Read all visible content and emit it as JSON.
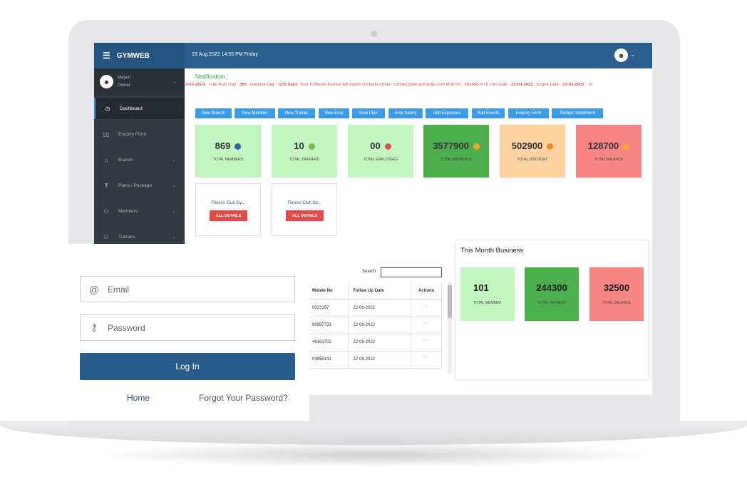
{
  "header": {
    "brand": "GYMWEB",
    "datetime": "19.Aug.2022 14:55 PM Friday"
  },
  "user": {
    "name": "Mayuri",
    "role": "Owner"
  },
  "sidebar": {
    "items": [
      {
        "label": "Dashboard",
        "icon": "dashboard-icon"
      },
      {
        "label": "Enquiry Form",
        "icon": "book-icon"
      },
      {
        "label": "Branch",
        "icon": "home-icon"
      },
      {
        "label": "Plans / Package",
        "icon": "rupee-icon"
      },
      {
        "label": "Members",
        "icon": "members-icon"
      },
      {
        "label": "Trainers",
        "icon": "trainers-icon"
      }
    ]
  },
  "notification": {
    "title": "Notification :",
    "ticker": {
      "p1": "3-03-2023",
      "p2": " , Total Plan Day : ",
      "p3": "365",
      "p4": " , Balance Day : ",
      "p5": "-215 days",
      "p6": ". Your Software license will expire contacts Email : connect@tenaciousys.com Mob No : 9834687079     Join Date : ",
      "p7": "22-03-2022",
      "p8": " , Expire Date : ",
      "p9": "22-03-2023",
      "p10": " , To"
    }
  },
  "quick_buttons": [
    "New Branch",
    "New Member",
    "New Trainer",
    "New Emp",
    "New Plan",
    "Emp Salary",
    "Add Expanses",
    "Add Events",
    "Enquiry Form",
    "Todays Installment"
  ],
  "stats": [
    {
      "value": "869",
      "label": "TOTAL MEMBERS",
      "bg": "#c3f5c0",
      "badge": "#3a5bb0"
    },
    {
      "value": "10",
      "label": "TOTAL TRAINERS",
      "bg": "#c3f5c0",
      "badge": "#7ac143"
    },
    {
      "value": "00",
      "label": "TOTAL EMPLOYEES",
      "bg": "#c3f5c0",
      "badge": "#e05252"
    },
    {
      "value": "3577900",
      "label": "TOTAL PAYMENTS",
      "bg": "#4cae4c",
      "badge": "#f0a830"
    },
    {
      "value": "502900",
      "label": "TOTAL DISCOUNT",
      "bg": "#fdd3a2",
      "badge": "#f08a1c"
    },
    {
      "value": "128700",
      "label": "TOTAL BALANCE",
      "bg": "#f98484",
      "badge": "#f0a830"
    }
  ],
  "branches": [
    {
      "name": "Fitness Club Gy...",
      "button": "ALL DETAILS"
    },
    {
      "name": "Fitness Club Gy...",
      "button": "ALL DETAILS"
    }
  ],
  "followup": {
    "search_label": "Search:",
    "columns": [
      "Mobile No",
      "Follow Up Date",
      "Actions"
    ],
    "rows": [
      {
        "mobile": "0023197",
        "date": "22-06-2022",
        "action": "..."
      },
      {
        "mobile": "99597733",
        "date": "22-06-2022",
        "action": "..."
      },
      {
        "mobile": "46161702",
        "date": "22-06-2022",
        "action": "..."
      },
      {
        "mobile": "04858141",
        "date": "22-06-2022",
        "action": "..."
      }
    ]
  },
  "login": {
    "email_placeholder": "Email",
    "password_placeholder": "Password",
    "button": "Log In",
    "home_link": "Home",
    "forgot_link": "Forgot Your Password?"
  },
  "month_business": {
    "title": "This Month Business",
    "cards": [
      {
        "value": "101",
        "label": "TOTAL MEMBER",
        "bg": "#c3f5c0"
      },
      {
        "value": "244300",
        "label": "TOTAL PAYMENT",
        "bg": "#4cae4c"
      },
      {
        "value": "32500",
        "label": "TOTAL BALANCE",
        "bg": "#f98484"
      }
    ]
  }
}
